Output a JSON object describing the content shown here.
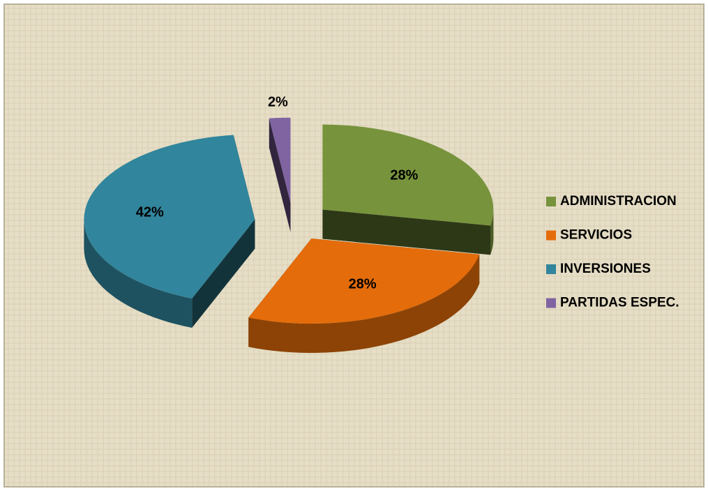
{
  "chart_data": {
    "type": "pie",
    "categories": [
      "ADMINISTRACION",
      "SERVICIOS",
      "INVERSIONES",
      "PARTIDAS ESPEC."
    ],
    "values": [
      28,
      28,
      42,
      2
    ],
    "value_labels": [
      "28%",
      "28%",
      "42%",
      "2%"
    ],
    "colors": [
      "#77933c",
      "#e46c0a",
      "#31859c",
      "#8064a2"
    ],
    "legend": "right"
  }
}
